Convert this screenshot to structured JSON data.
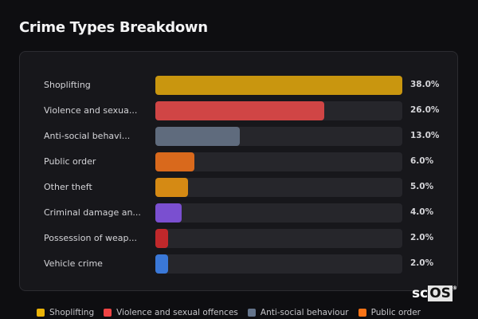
{
  "title": "Crime Types Breakdown",
  "watermark": {
    "prefix": "sc",
    "highlight": "OS",
    "mark": "®"
  },
  "chart_data": {
    "type": "bar",
    "orientation": "horizontal",
    "title": "Crime Types Breakdown",
    "categories": [
      "Shoplifting",
      "Violence and sexua...",
      "Anti-social behavi...",
      "Public order",
      "Other theft",
      "Criminal damage an...",
      "Possession of weap...",
      "Vehicle crime"
    ],
    "values": [
      38.0,
      26.0,
      13.0,
      6.0,
      5.0,
      4.0,
      2.0,
      2.0
    ],
    "value_labels": [
      "38.0%",
      "26.0%",
      "13.0%",
      "6.0%",
      "5.0%",
      "4.0%",
      "2.0%",
      "2.0%"
    ],
    "colors": [
      "#c9960f",
      "#d04545",
      "#5f6b7d",
      "#d9691c",
      "#d58a14",
      "#7a4fd0",
      "#c0282b",
      "#3a78d8"
    ],
    "unit": "%",
    "legend": [
      {
        "label": "Shoplifting",
        "color": "#eab308"
      },
      {
        "label": "Violence and sexual offences",
        "color": "#ef4444"
      },
      {
        "label": "Anti-social behaviour",
        "color": "#64748b"
      },
      {
        "label": "Public order",
        "color": "#f97316"
      }
    ],
    "legend_position": "bottom"
  }
}
